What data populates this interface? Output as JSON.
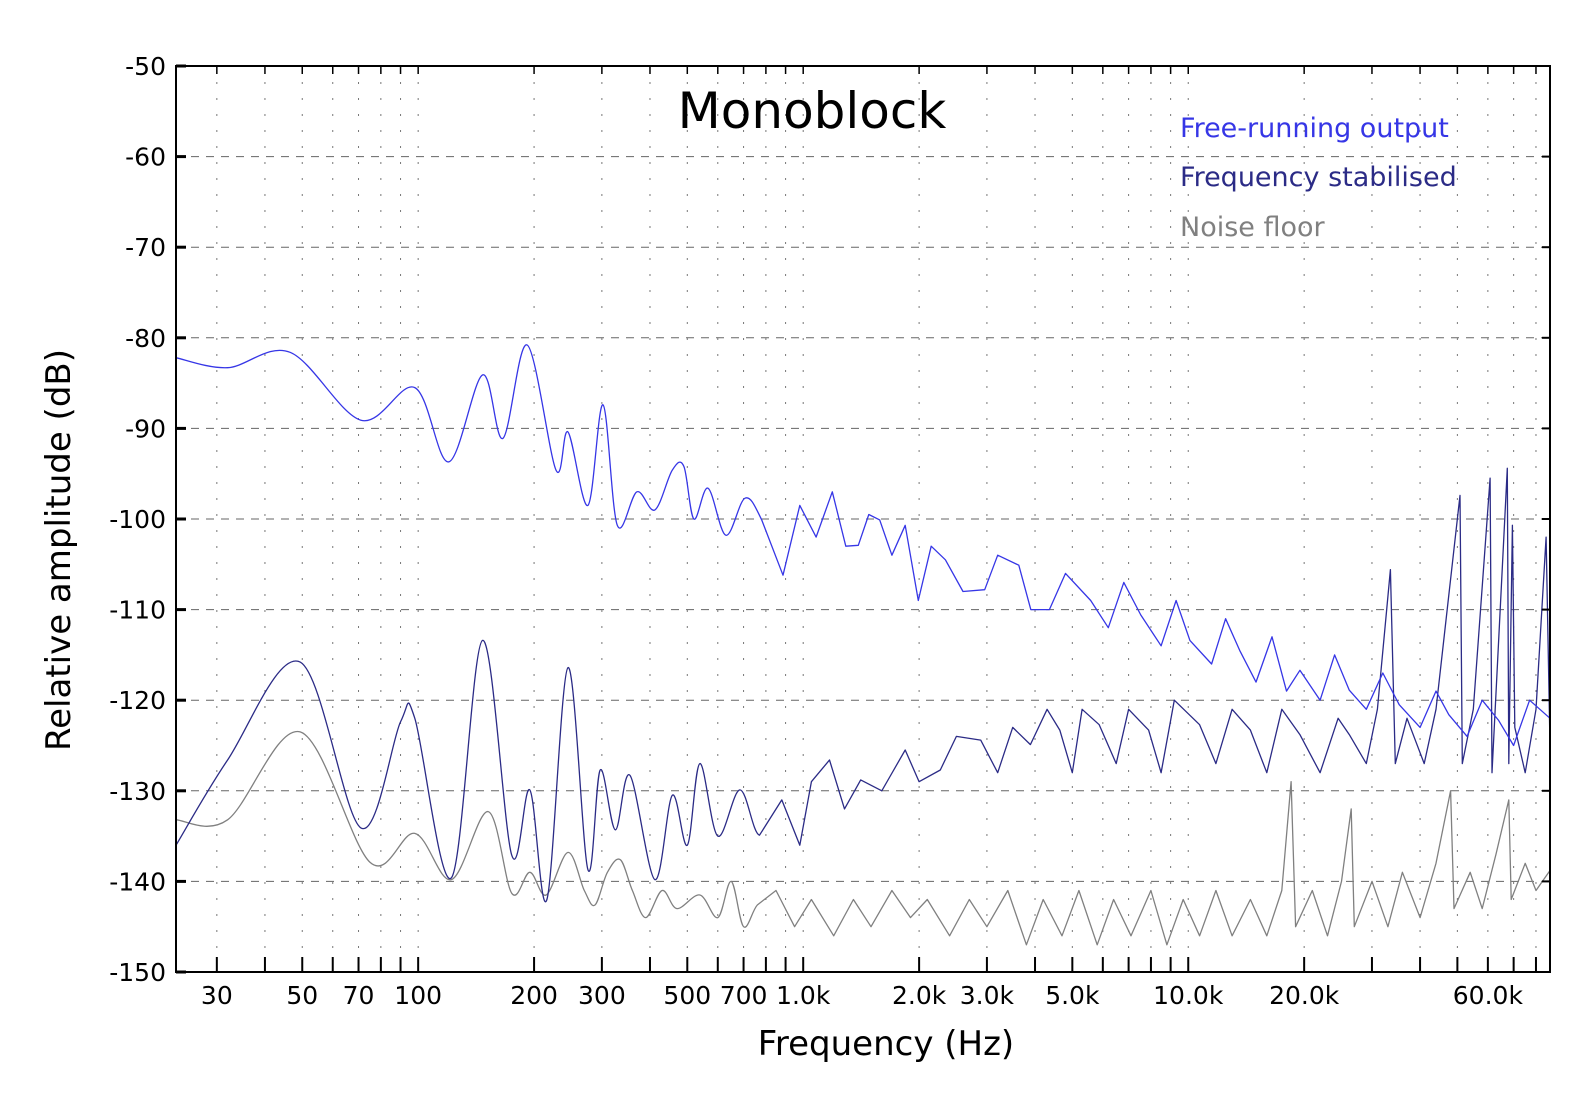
{
  "chart_data": {
    "type": "line",
    "title": "Monoblock",
    "xlabel": "Frequency (Hz)",
    "ylabel": "Relative amplitude (dB)",
    "x_scale": "log",
    "xlim": [
      23.5,
      87000
    ],
    "ylim": [
      -150,
      -50
    ],
    "grid": true,
    "legend_placement": "top-right",
    "x_ticks": [
      30,
      40,
      50,
      60,
      70,
      80,
      90,
      100,
      200,
      300,
      400,
      500,
      600,
      700,
      800,
      900,
      1000,
      2000,
      3000,
      4000,
      5000,
      6000,
      7000,
      8000,
      9000,
      10000,
      20000,
      30000,
      40000,
      50000,
      60000,
      70000,
      80000
    ],
    "x_tick_labels": [
      {
        "value": 30,
        "label": "30"
      },
      {
        "value": 50,
        "label": "50"
      },
      {
        "value": 70,
        "label": "70"
      },
      {
        "value": 100,
        "label": "100"
      },
      {
        "value": 200,
        "label": "200"
      },
      {
        "value": 300,
        "label": "300"
      },
      {
        "value": 500,
        "label": "500"
      },
      {
        "value": 700,
        "label": "700"
      },
      {
        "value": 1000,
        "label": "1.0k"
      },
      {
        "value": 2000,
        "label": "2.0k"
      },
      {
        "value": 3000,
        "label": "3.0k"
      },
      {
        "value": 5000,
        "label": "5.0k"
      },
      {
        "value": 10000,
        "label": "10.0k"
      },
      {
        "value": 20000,
        "label": "20.0k"
      },
      {
        "value": 60000,
        "label": "60.0k"
      }
    ],
    "y_ticks": [
      -50,
      -60,
      -70,
      -80,
      -90,
      -100,
      -110,
      -120,
      -130,
      -140,
      -150
    ],
    "y_tick_labels": [
      "-50",
      "-60",
      "-70",
      "-80",
      "-90",
      "-100",
      "-110",
      "-120",
      "-130",
      "-140",
      "-150"
    ],
    "series": [
      {
        "name": "Free-running output",
        "color": "#3636e6",
        "points": [
          [
            23.5,
            -82.2
          ],
          [
            32,
            -83.3
          ],
          [
            46.5,
            -81.6
          ],
          [
            71,
            -89.1
          ],
          [
            98,
            -85.5
          ],
          [
            120,
            -93.7
          ],
          [
            147,
            -84.1
          ],
          [
            166,
            -91.1
          ],
          [
            192,
            -80.8
          ],
          [
            228,
            -94.6
          ],
          [
            245,
            -90.4
          ],
          [
            276,
            -98.5
          ],
          [
            302,
            -87.4
          ],
          [
            329,
            -100.7
          ],
          [
            370,
            -97
          ],
          [
            412,
            -99
          ],
          [
            457,
            -94.6
          ],
          [
            490,
            -94.2
          ],
          [
            520,
            -100
          ],
          [
            566,
            -96.6
          ],
          [
            630,
            -101.8
          ],
          [
            706,
            -97.7
          ],
          [
            780,
            -100.1
          ],
          [
            886,
            -106.2
          ],
          [
            980,
            -98.5
          ],
          [
            1080,
            -102
          ],
          [
            1190,
            -97
          ],
          [
            1290,
            -103
          ],
          [
            1390,
            -102.9
          ],
          [
            1480,
            -99.5
          ],
          [
            1580,
            -100.1
          ],
          [
            1700,
            -104
          ],
          [
            1840,
            -100.7
          ],
          [
            1990,
            -109
          ],
          [
            2150,
            -103
          ],
          [
            2340,
            -104.5
          ],
          [
            2600,
            -108
          ],
          [
            2960,
            -107.8
          ],
          [
            3200,
            -104
          ],
          [
            3630,
            -105.1
          ],
          [
            3900,
            -110
          ],
          [
            4360,
            -110
          ],
          [
            4800,
            -106
          ],
          [
            5580,
            -109
          ],
          [
            6200,
            -112
          ],
          [
            6800,
            -107
          ],
          [
            7530,
            -110.6
          ],
          [
            8500,
            -114
          ],
          [
            9300,
            -109
          ],
          [
            10100,
            -113.4
          ],
          [
            11500,
            -116
          ],
          [
            12500,
            -111
          ],
          [
            13600,
            -114.5
          ],
          [
            15000,
            -118
          ],
          [
            16500,
            -113
          ],
          [
            18000,
            -119
          ],
          [
            19500,
            -116.7
          ],
          [
            22000,
            -120
          ],
          [
            24000,
            -115
          ],
          [
            26200,
            -118.9
          ],
          [
            29000,
            -121
          ],
          [
            32000,
            -117
          ],
          [
            35300,
            -120.5
          ],
          [
            40000,
            -123
          ],
          [
            44000,
            -119
          ],
          [
            47500,
            -121.6
          ],
          [
            53000,
            -124
          ],
          [
            58000,
            -120
          ],
          [
            63900,
            -122.2
          ],
          [
            70000,
            -125
          ],
          [
            77000,
            -120
          ],
          [
            87000,
            -122
          ]
        ]
      },
      {
        "name": "Frequency stabilised",
        "color": "#2b2b86",
        "points": [
          [
            23.5,
            -136
          ],
          [
            32,
            -126.6
          ],
          [
            49.4,
            -115.8
          ],
          [
            71,
            -134.1
          ],
          [
            90,
            -122.4
          ],
          [
            98,
            -122
          ],
          [
            122,
            -139.6
          ],
          [
            147,
            -113.4
          ],
          [
            175,
            -137.1
          ],
          [
            195,
            -129.9
          ],
          [
            216,
            -142
          ],
          [
            245,
            -116.4
          ],
          [
            276,
            -138.7
          ],
          [
            297,
            -127.7
          ],
          [
            325,
            -134.3
          ],
          [
            355,
            -128.3
          ],
          [
            412,
            -139.8
          ],
          [
            457,
            -130.5
          ],
          [
            500,
            -136
          ],
          [
            539,
            -127
          ],
          [
            600,
            -135
          ],
          [
            685,
            -129.9
          ],
          [
            770,
            -134.9
          ],
          [
            880,
            -131
          ],
          [
            980,
            -136
          ],
          [
            1050,
            -129
          ],
          [
            1170,
            -126.6
          ],
          [
            1280,
            -132
          ],
          [
            1410,
            -128.8
          ],
          [
            1600,
            -130
          ],
          [
            1840,
            -125.5
          ],
          [
            2000,
            -129
          ],
          [
            2270,
            -127.7
          ],
          [
            2500,
            -124
          ],
          [
            2890,
            -124.4
          ],
          [
            3200,
            -128
          ],
          [
            3500,
            -123
          ],
          [
            3890,
            -124.9
          ],
          [
            4300,
            -121
          ],
          [
            4640,
            -123.3
          ],
          [
            5000,
            -128
          ],
          [
            5300,
            -121
          ],
          [
            5870,
            -122.7
          ],
          [
            6500,
            -127
          ],
          [
            7000,
            -121
          ],
          [
            7890,
            -123.3
          ],
          [
            8500,
            -128
          ],
          [
            9200,
            -120
          ],
          [
            10700,
            -122.7
          ],
          [
            11800,
            -127
          ],
          [
            13000,
            -121
          ],
          [
            14500,
            -123.3
          ],
          [
            16000,
            -128
          ],
          [
            17500,
            -121
          ],
          [
            19500,
            -123.8
          ],
          [
            22000,
            -128
          ],
          [
            24500,
            -122
          ],
          [
            26200,
            -123.8
          ],
          [
            29000,
            -127
          ],
          [
            31000,
            -121
          ],
          [
            33500,
            -105.6
          ],
          [
            34500,
            -127
          ],
          [
            37000,
            -122
          ],
          [
            41000,
            -127
          ],
          [
            44000,
            -121
          ],
          [
            50800,
            -97.4
          ],
          [
            51500,
            -127
          ],
          [
            55000,
            -121
          ],
          [
            60800,
            -95.5
          ],
          [
            61500,
            -128
          ],
          [
            67400,
            -94.4
          ],
          [
            68000,
            -127
          ],
          [
            69500,
            -100.7
          ],
          [
            70500,
            -123
          ],
          [
            75000,
            -128
          ],
          [
            80000,
            -121
          ],
          [
            85000,
            -102
          ],
          [
            87000,
            -125
          ]
        ]
      },
      {
        "name": "Noise floor",
        "color": "#808080",
        "points": [
          [
            23.5,
            -133.2
          ],
          [
            32,
            -133.2
          ],
          [
            49.4,
            -123.5
          ],
          [
            75,
            -137.9
          ],
          [
            98,
            -134.7
          ],
          [
            122,
            -139.8
          ],
          [
            152,
            -132.3
          ],
          [
            175,
            -141.3
          ],
          [
            195,
            -139
          ],
          [
            215,
            -141.5
          ],
          [
            245,
            -136.8
          ],
          [
            270,
            -141
          ],
          [
            288,
            -142.6
          ],
          [
            310,
            -139
          ],
          [
            335,
            -137.6
          ],
          [
            360,
            -141
          ],
          [
            390,
            -144
          ],
          [
            430,
            -141
          ],
          [
            470,
            -143
          ],
          [
            539,
            -141.5
          ],
          [
            600,
            -144
          ],
          [
            650,
            -140
          ],
          [
            700,
            -145
          ],
          [
            760,
            -142.6
          ],
          [
            850,
            -141
          ],
          [
            950,
            -145
          ],
          [
            1050,
            -142
          ],
          [
            1200,
            -146
          ],
          [
            1350,
            -142
          ],
          [
            1500,
            -145
          ],
          [
            1700,
            -141
          ],
          [
            1900,
            -144
          ],
          [
            2100,
            -142
          ],
          [
            2400,
            -146
          ],
          [
            2700,
            -142
          ],
          [
            3000,
            -145
          ],
          [
            3400,
            -141
          ],
          [
            3800,
            -147
          ],
          [
            4200,
            -142
          ],
          [
            4700,
            -146
          ],
          [
            5200,
            -141
          ],
          [
            5800,
            -147
          ],
          [
            6400,
            -142
          ],
          [
            7100,
            -146
          ],
          [
            8000,
            -141
          ],
          [
            8800,
            -147
          ],
          [
            9700,
            -142
          ],
          [
            10700,
            -146
          ],
          [
            11800,
            -141
          ],
          [
            13000,
            -146
          ],
          [
            14500,
            -142
          ],
          [
            16000,
            -146
          ],
          [
            17500,
            -141
          ],
          [
            18500,
            -129
          ],
          [
            19000,
            -145
          ],
          [
            21000,
            -141
          ],
          [
            23000,
            -146
          ],
          [
            25000,
            -140
          ],
          [
            26500,
            -132
          ],
          [
            27000,
            -145
          ],
          [
            30000,
            -140
          ],
          [
            33000,
            -145
          ],
          [
            36000,
            -139
          ],
          [
            40000,
            -144
          ],
          [
            44000,
            -138
          ],
          [
            48000,
            -130
          ],
          [
            49000,
            -143
          ],
          [
            54000,
            -139
          ],
          [
            58000,
            -143
          ],
          [
            63000,
            -137
          ],
          [
            68000,
            -131
          ],
          [
            69000,
            -142
          ],
          [
            75000,
            -138
          ],
          [
            80000,
            -141
          ],
          [
            87000,
            -138.8
          ]
        ]
      }
    ]
  }
}
